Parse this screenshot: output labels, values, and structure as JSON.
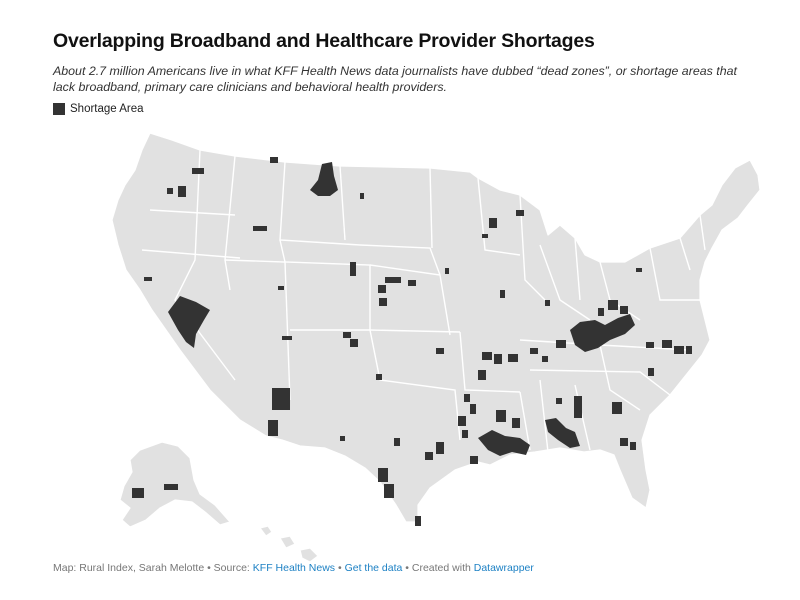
{
  "header": {
    "title": "Overlapping Broadband and Healthcare Provider Shortages",
    "subtitle": "About 2.7 million Americans live in what KFF Health News data journalists have dubbed “dead zones”, or shortage areas that lack broadband, primary care clinicians and behavioral health providers."
  },
  "legend": {
    "label": "Shortage Area",
    "color": "#333333"
  },
  "map": {
    "land_color": "#e1e1e1",
    "border_color": "#ffffff",
    "shortage_color": "#333333"
  },
  "footer": {
    "prefix": "Map: Rural Index, Sarah Melotte • Source: ",
    "source_link": "KFF Health News",
    "sep1": " • ",
    "data_link": "Get the data",
    "sep2": " • Created with ",
    "tool_link": "Datawrapper"
  }
}
